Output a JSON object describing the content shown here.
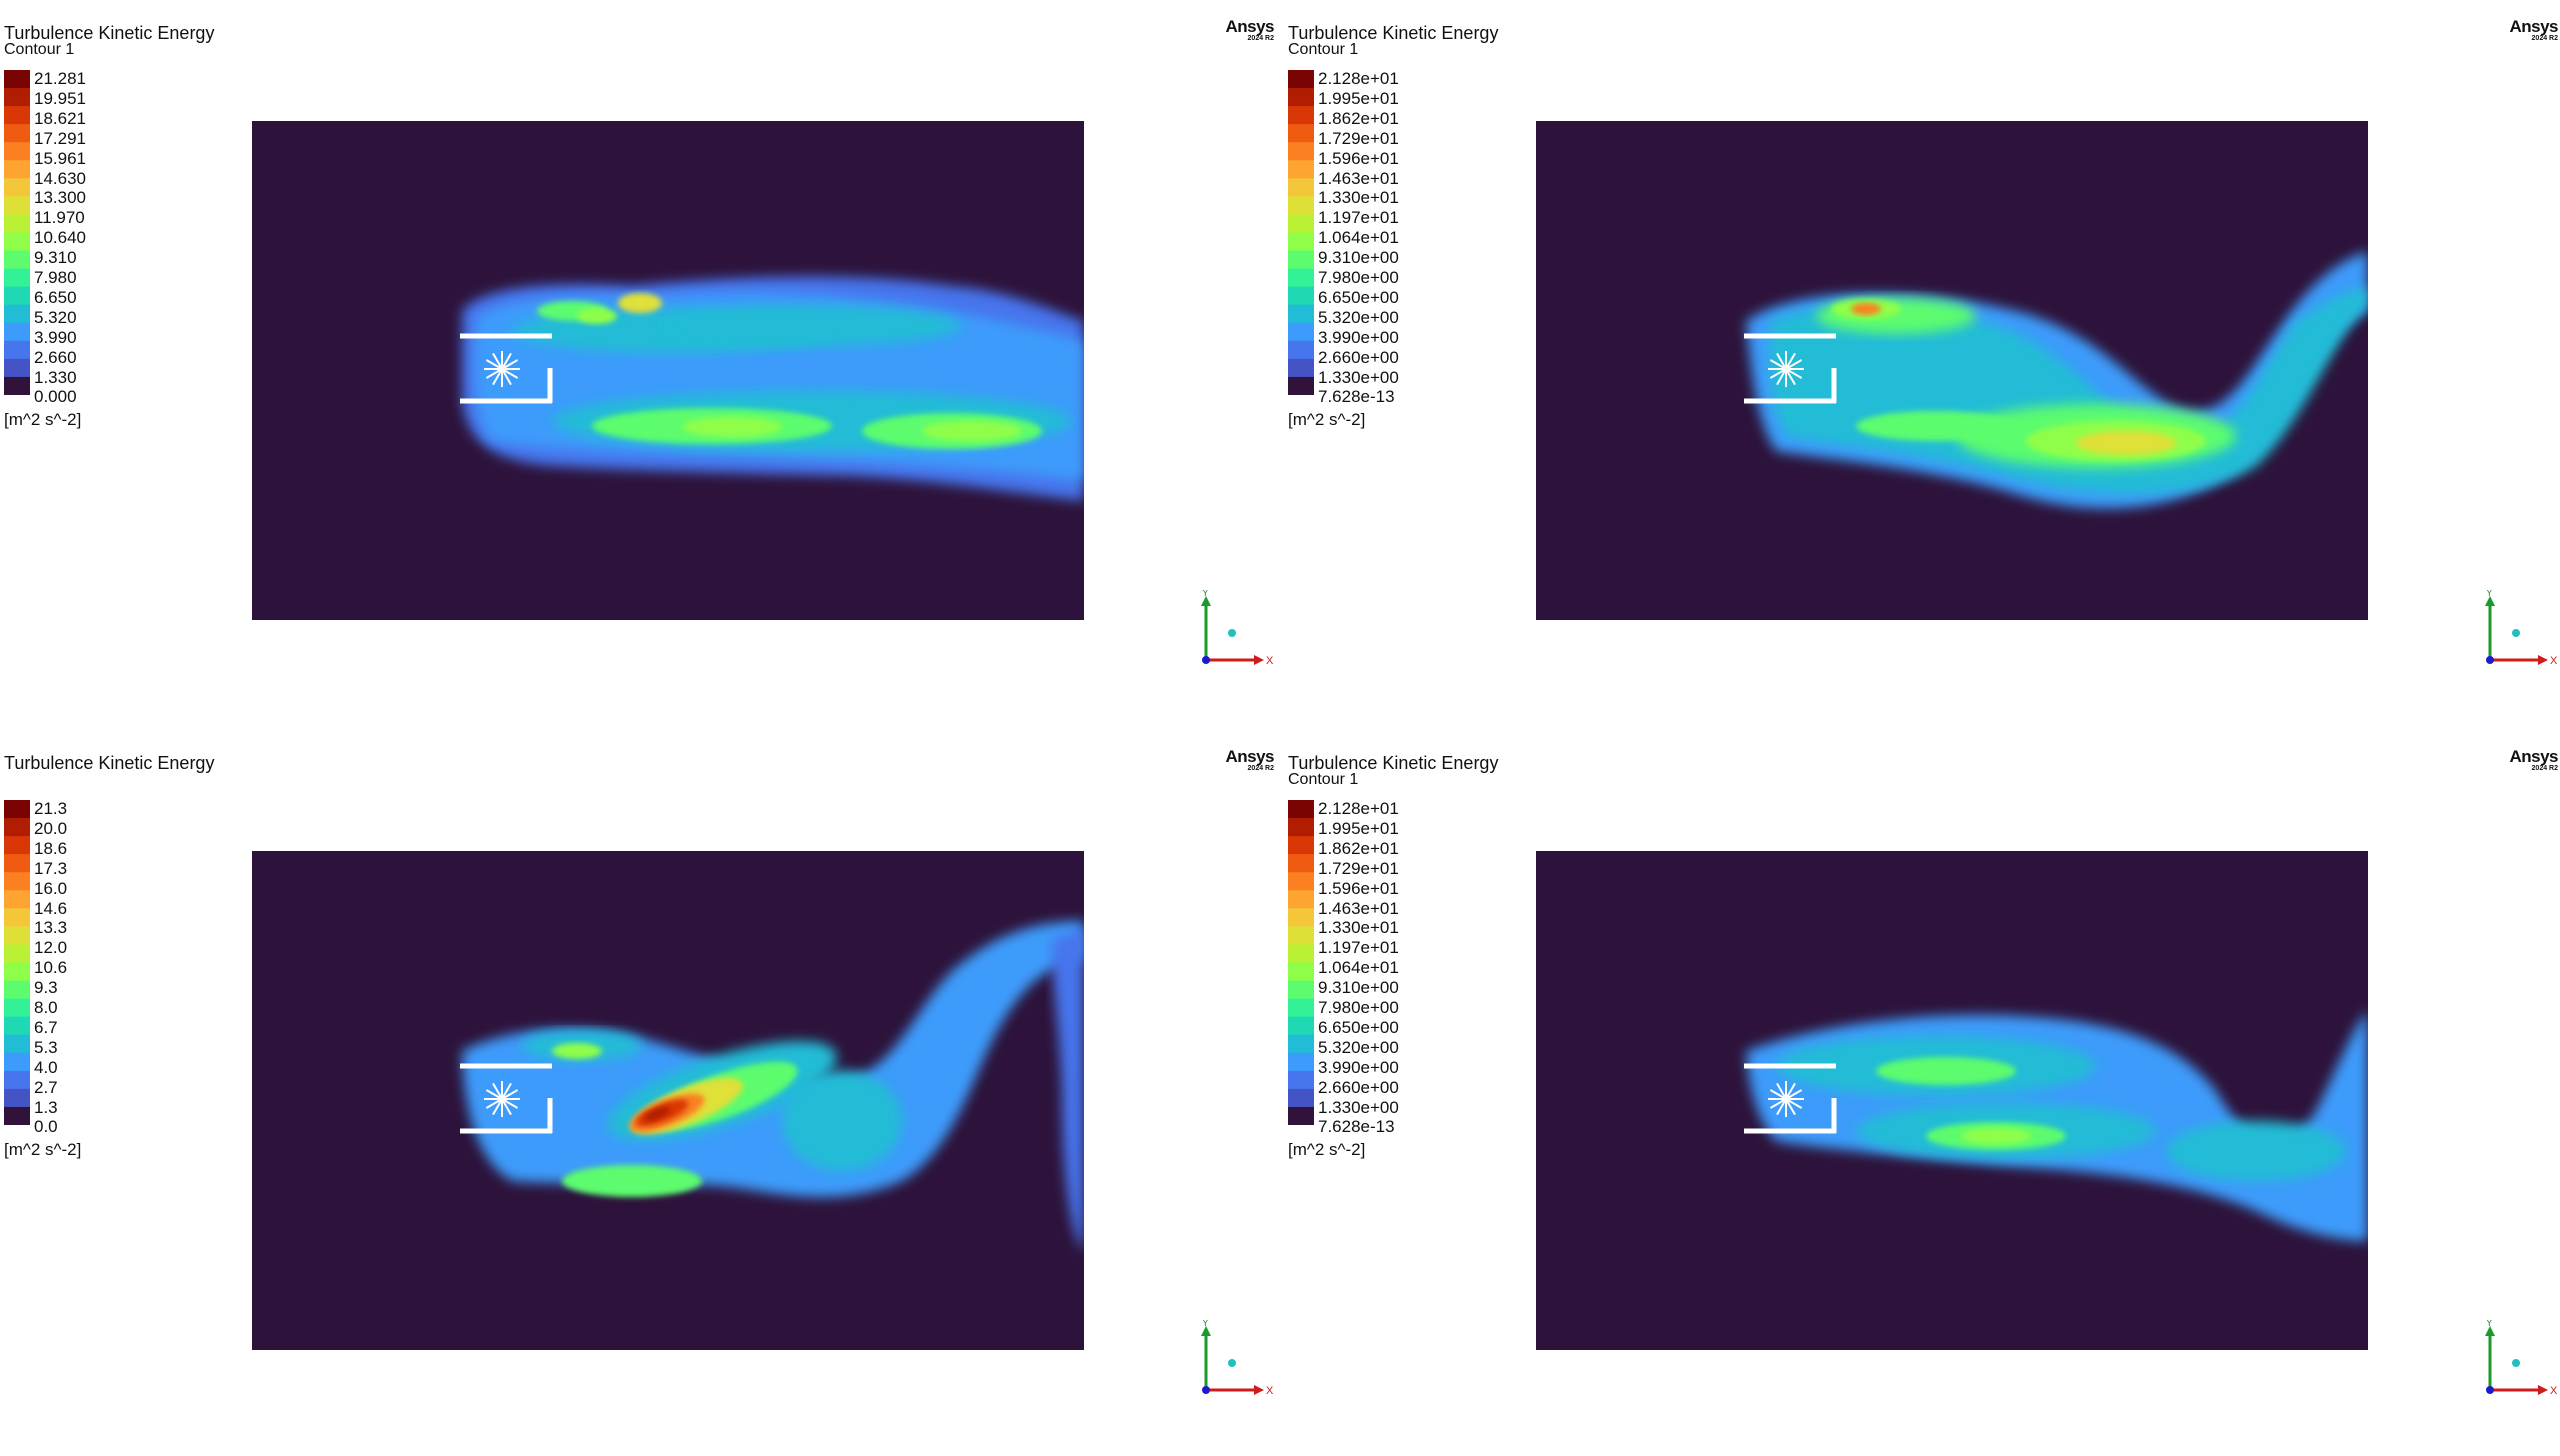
{
  "panels": [
    {
      "title": "Turbulence Kinetic Energy",
      "subtitle": "Contour 1",
      "labels": [
        "21.281",
        "19.951",
        "18.621",
        "17.291",
        "15.961",
        "14.630",
        "13.300",
        "11.970",
        "10.640",
        "9.310",
        "7.980",
        "6.650",
        "5.320",
        "3.990",
        "2.660",
        "1.330",
        "0.000"
      ],
      "units": "[m^2 s^-2]",
      "logo": "Ansys",
      "logo_version": "2024 R2",
      "axis_x": "X",
      "axis_y": "Y",
      "variant": "a"
    },
    {
      "title": "Turbulence Kinetic Energy",
      "subtitle": "Contour 1",
      "labels": [
        "2.128e+01",
        "1.995e+01",
        "1.862e+01",
        "1.729e+01",
        "1.596e+01",
        "1.463e+01",
        "1.330e+01",
        "1.197e+01",
        "1.064e+01",
        "9.310e+00",
        "7.980e+00",
        "6.650e+00",
        "5.320e+00",
        "3.990e+00",
        "2.660e+00",
        "1.330e+00",
        "7.628e-13"
      ],
      "units": "[m^2 s^-2]",
      "logo": "Ansys",
      "logo_version": "2024 R2",
      "axis_x": "X",
      "axis_y": "Y",
      "variant": "b"
    },
    {
      "title": "Turbulence Kinetic Energy",
      "subtitle": "",
      "labels": [
        "21.3",
        "20.0",
        "18.6",
        "17.3",
        "16.0",
        "14.6",
        "13.3",
        "12.0",
        "10.6",
        "9.3",
        "8.0",
        "6.7",
        "5.3",
        "4.0",
        "2.7",
        "1.3",
        "0.0"
      ],
      "units": "[m^2 s^-2]",
      "logo": "Ansys",
      "logo_version": "2024 R2",
      "axis_x": "X",
      "axis_y": "Y",
      "variant": "c"
    },
    {
      "title": "Turbulence Kinetic Energy",
      "subtitle": "Contour 1",
      "labels": [
        "2.128e+01",
        "1.995e+01",
        "1.862e+01",
        "1.729e+01",
        "1.596e+01",
        "1.463e+01",
        "1.330e+01",
        "1.197e+01",
        "1.064e+01",
        "9.310e+00",
        "7.980e+00",
        "6.650e+00",
        "5.320e+00",
        "3.990e+00",
        "2.660e+00",
        "1.330e+00",
        "7.628e-13"
      ],
      "units": "[m^2 s^-2]",
      "logo": "Ansys",
      "logo_version": "2024 R2",
      "axis_x": "X",
      "axis_y": "Y",
      "variant": "d"
    }
  ],
  "colors": {
    "background": "#2d133b",
    "colormap": [
      "#7a0403",
      "#b01d01",
      "#d93806",
      "#f05b12",
      "#fb8022",
      "#fea531",
      "#f4c63a",
      "#dfe037",
      "#bbf135",
      "#8ffe48",
      "#5cfc6e",
      "#32f197",
      "#1fd8b4",
      "#21bcd6",
      "#3c9bfb",
      "#4675ed",
      "#4454c4",
      "#30123b"
    ]
  }
}
